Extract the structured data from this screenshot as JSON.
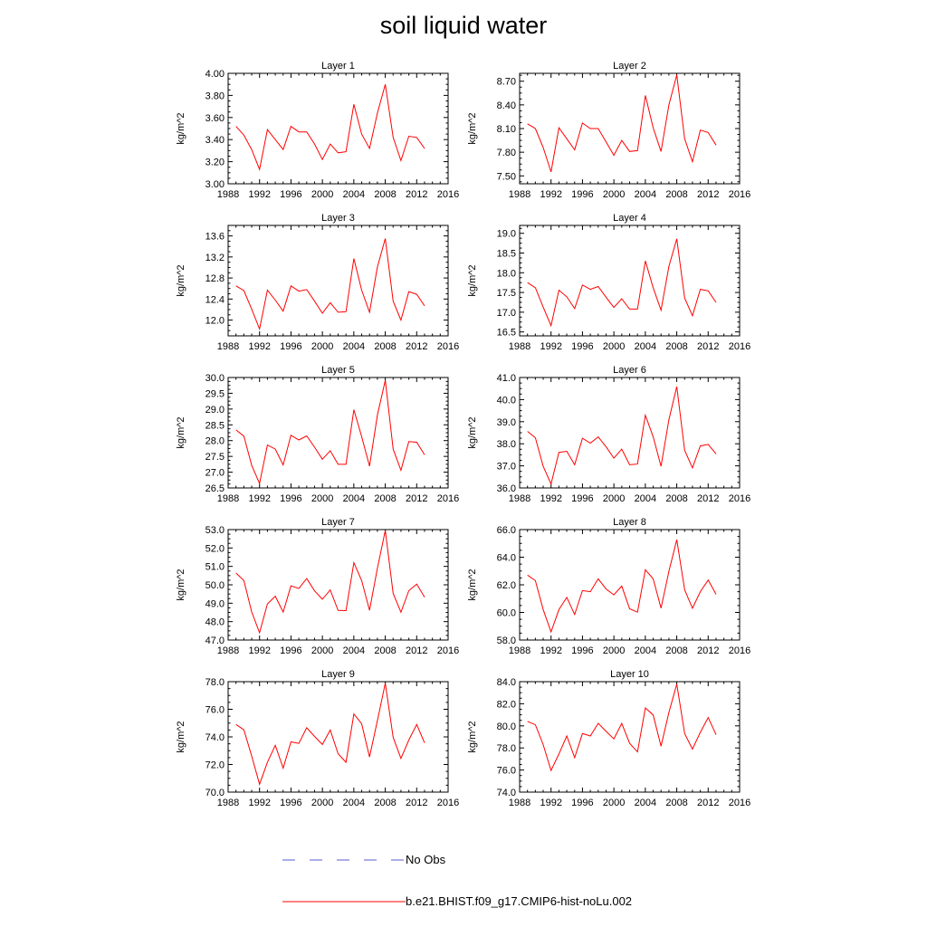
{
  "figure": {
    "title": "soil liquid water",
    "ylabel": "kg/m^2"
  },
  "legend": {
    "items": [
      {
        "label": "No Obs",
        "color": "#5b5bd6",
        "dash": true
      },
      {
        "label": "b.e21.BHIST.f09_g17.CMIP6-hist-noLu.002",
        "color": "#ff0000",
        "dash": false
      }
    ]
  },
  "chart_data": [
    {
      "type": "line",
      "title": "Layer 1",
      "ylabel": "kg/m^2",
      "xlim": [
        1988,
        2016
      ],
      "xticks": [
        "1988",
        "1992",
        "1996",
        "2000",
        "2004",
        "2008",
        "2012",
        "2016"
      ],
      "ylim": [
        3.0,
        4.0
      ],
      "yticks": [
        "3.00",
        "3.20",
        "3.40",
        "3.60",
        "3.80",
        "4.00"
      ],
      "x": [
        1989,
        1990,
        1991,
        1992,
        1993,
        1994,
        1995,
        1996,
        1997,
        1998,
        1999,
        2000,
        2001,
        2002,
        2003,
        2004,
        2005,
        2006,
        2007,
        2008,
        2009,
        2010,
        2011,
        2012,
        2013
      ],
      "series": [
        {
          "name": "b.e21.BHIST.f09_g17.CMIP6-hist-noLu.002",
          "values": [
            3.52,
            3.44,
            3.31,
            3.13,
            3.49,
            3.4,
            3.31,
            3.52,
            3.47,
            3.47,
            3.36,
            3.22,
            3.36,
            3.28,
            3.29,
            3.72,
            3.45,
            3.32,
            3.64,
            3.9,
            3.42,
            3.21,
            3.43,
            3.42,
            3.32
          ]
        }
      ]
    },
    {
      "type": "line",
      "title": "Layer 2",
      "ylabel": "kg/m^2",
      "xlim": [
        1988,
        2016
      ],
      "xticks": [
        "1988",
        "1992",
        "1996",
        "2000",
        "2004",
        "2008",
        "2012",
        "2016"
      ],
      "ylim": [
        7.4,
        8.8
      ],
      "yticks": [
        "7.50",
        "7.80",
        "8.10",
        "8.40",
        "8.70"
      ],
      "x": [
        1989,
        1990,
        1991,
        1992,
        1993,
        1994,
        1995,
        1996,
        1997,
        1998,
        1999,
        2000,
        2001,
        2002,
        2003,
        2004,
        2005,
        2006,
        2007,
        2008,
        2009,
        2010,
        2011,
        2012,
        2013
      ],
      "series": [
        {
          "name": "b.e21.BHIST.f09_g17.CMIP6-hist-noLu.002",
          "values": [
            8.16,
            8.1,
            7.86,
            7.55,
            8.11,
            7.97,
            7.83,
            8.17,
            8.1,
            8.1,
            7.93,
            7.76,
            7.95,
            7.81,
            7.82,
            8.52,
            8.11,
            7.81,
            8.4,
            8.78,
            7.97,
            7.68,
            8.08,
            8.05,
            7.89
          ]
        }
      ]
    },
    {
      "type": "line",
      "title": "Layer 3",
      "ylabel": "kg/m^2",
      "xlim": [
        1988,
        2016
      ],
      "xticks": [
        "1988",
        "1992",
        "1996",
        "2000",
        "2004",
        "2008",
        "2012",
        "2016"
      ],
      "ylim": [
        11.7,
        13.8
      ],
      "yticks": [
        "12.0",
        "12.4",
        "12.8",
        "13.2",
        "13.6"
      ],
      "x": [
        1989,
        1990,
        1991,
        1992,
        1993,
        1994,
        1995,
        1996,
        1997,
        1998,
        1999,
        2000,
        2001,
        2002,
        2003,
        2004,
        2005,
        2006,
        2007,
        2008,
        2009,
        2010,
        2011,
        2012,
        2013
      ],
      "series": [
        {
          "name": "b.e21.BHIST.f09_g17.CMIP6-hist-noLu.002",
          "values": [
            12.65,
            12.56,
            12.21,
            11.83,
            12.57,
            12.38,
            12.17,
            12.65,
            12.55,
            12.58,
            12.36,
            12.13,
            12.33,
            12.15,
            12.16,
            13.17,
            12.57,
            12.15,
            13.01,
            13.55,
            12.36,
            12.0,
            12.54,
            12.49,
            12.27
          ]
        }
      ]
    },
    {
      "type": "line",
      "title": "Layer 4",
      "ylabel": "kg/m^2",
      "xlim": [
        1988,
        2016
      ],
      "xticks": [
        "1988",
        "1992",
        "1996",
        "2000",
        "2004",
        "2008",
        "2012",
        "2016"
      ],
      "ylim": [
        16.4,
        19.2
      ],
      "yticks": [
        "16.5",
        "17.0",
        "17.5",
        "18.0",
        "18.5",
        "19.0"
      ],
      "x": [
        1989,
        1990,
        1991,
        1992,
        1993,
        1994,
        1995,
        1996,
        1997,
        1998,
        1999,
        2000,
        2001,
        2002,
        2003,
        2004,
        2005,
        2006,
        2007,
        2008,
        2009,
        2010,
        2011,
        2012,
        2013
      ],
      "series": [
        {
          "name": "b.e21.BHIST.f09_g17.CMIP6-hist-noLu.002",
          "values": [
            17.75,
            17.62,
            17.13,
            16.66,
            17.56,
            17.39,
            17.09,
            17.69,
            17.58,
            17.65,
            17.38,
            17.12,
            17.34,
            17.08,
            17.08,
            18.3,
            17.62,
            17.05,
            18.16,
            18.86,
            17.36,
            16.91,
            17.58,
            17.54,
            17.25
          ]
        }
      ]
    },
    {
      "type": "line",
      "title": "Layer 5",
      "ylabel": "kg/m^2",
      "xlim": [
        1988,
        2016
      ],
      "xticks": [
        "1988",
        "1992",
        "1996",
        "2000",
        "2004",
        "2008",
        "2012",
        "2016"
      ],
      "ylim": [
        26.5,
        30.0
      ],
      "yticks": [
        "26.5",
        "27.0",
        "27.5",
        "28.0",
        "28.5",
        "29.0",
        "29.5",
        "30.0"
      ],
      "x": [
        1989,
        1990,
        1991,
        1992,
        1993,
        1994,
        1995,
        1996,
        1997,
        1998,
        1999,
        2000,
        2001,
        2002,
        2003,
        2004,
        2005,
        2006,
        2007,
        2008,
        2009,
        2010,
        2011,
        2012,
        2013
      ],
      "series": [
        {
          "name": "b.e21.BHIST.f09_g17.CMIP6-hist-noLu.002",
          "values": [
            28.34,
            28.14,
            27.22,
            26.64,
            27.86,
            27.73,
            27.23,
            28.17,
            28.02,
            28.15,
            27.79,
            27.41,
            27.68,
            27.25,
            27.25,
            28.98,
            28.13,
            27.19,
            28.81,
            29.91,
            27.73,
            27.06,
            27.97,
            27.95,
            27.55
          ]
        }
      ]
    },
    {
      "type": "line",
      "title": "Layer 6",
      "ylabel": "kg/m^2",
      "xlim": [
        1988,
        2016
      ],
      "xticks": [
        "1988",
        "1992",
        "1996",
        "2000",
        "2004",
        "2008",
        "2012",
        "2016"
      ],
      "ylim": [
        36.0,
        41.0
      ],
      "yticks": [
        "36.0",
        "37.0",
        "38.0",
        "39.0",
        "40.0",
        "41.0"
      ],
      "x": [
        1989,
        1990,
        1991,
        1992,
        1993,
        1994,
        1995,
        1996,
        1997,
        1998,
        1999,
        2000,
        2001,
        2002,
        2003,
        2004,
        2005,
        2006,
        2007,
        2008,
        2009,
        2010,
        2011,
        2012,
        2013
      ],
      "series": [
        {
          "name": "b.e21.BHIST.f09_g17.CMIP6-hist-noLu.002",
          "values": [
            38.56,
            38.27,
            36.98,
            36.18,
            37.61,
            37.66,
            37.05,
            38.25,
            38.03,
            38.31,
            37.86,
            37.35,
            37.76,
            37.05,
            37.08,
            39.29,
            38.32,
            36.98,
            39.09,
            40.59,
            37.7,
            36.91,
            37.9,
            37.97,
            37.54
          ]
        }
      ]
    },
    {
      "type": "line",
      "title": "Layer 7",
      "ylabel": "kg/m^2",
      "xlim": [
        1988,
        2016
      ],
      "xticks": [
        "1988",
        "1992",
        "1996",
        "2000",
        "2004",
        "2008",
        "2012",
        "2016"
      ],
      "ylim": [
        47.0,
        53.0
      ],
      "yticks": [
        "47.0",
        "48.0",
        "49.0",
        "50.0",
        "51.0",
        "52.0",
        "53.0"
      ],
      "x": [
        1989,
        1990,
        1991,
        1992,
        1993,
        1994,
        1995,
        1996,
        1997,
        1998,
        1999,
        2000,
        2001,
        2002,
        2003,
        2004,
        2005,
        2006,
        2007,
        2008,
        2009,
        2010,
        2011,
        2012,
        2013
      ],
      "series": [
        {
          "name": "b.e21.BHIST.f09_g17.CMIP6-hist-noLu.002",
          "values": [
            50.64,
            50.23,
            48.53,
            47.4,
            48.96,
            49.38,
            48.52,
            49.94,
            49.8,
            50.34,
            49.67,
            49.22,
            49.72,
            48.61,
            48.6,
            51.2,
            50.23,
            48.62,
            50.9,
            52.95,
            49.53,
            48.51,
            49.68,
            50.04,
            49.33
          ]
        }
      ]
    },
    {
      "type": "line",
      "title": "Layer 8",
      "ylabel": "kg/m^2",
      "xlim": [
        1988,
        2016
      ],
      "xticks": [
        "1988",
        "1992",
        "1996",
        "2000",
        "2004",
        "2008",
        "2012",
        "2016"
      ],
      "ylim": [
        58.0,
        66.0
      ],
      "yticks": [
        "58.0",
        "60.0",
        "62.0",
        "64.0",
        "66.0"
      ],
      "x": [
        1989,
        1990,
        1991,
        1992,
        1993,
        1994,
        1995,
        1996,
        1997,
        1998,
        1999,
        2000,
        2001,
        2002,
        2003,
        2004,
        2005,
        2006,
        2007,
        2008,
        2009,
        2010,
        2011,
        2012,
        2013
      ],
      "series": [
        {
          "name": "b.e21.BHIST.f09_g17.CMIP6-hist-noLu.002",
          "values": [
            62.7,
            62.3,
            60.21,
            58.59,
            60.2,
            61.09,
            59.85,
            61.58,
            61.5,
            62.43,
            61.7,
            61.27,
            61.91,
            60.26,
            60.02,
            63.09,
            62.43,
            60.31,
            62.98,
            65.27,
            61.64,
            60.3,
            61.5,
            62.35,
            61.31
          ]
        }
      ]
    },
    {
      "type": "line",
      "title": "Layer 9",
      "ylabel": "kg/m^2",
      "xlim": [
        1988,
        2016
      ],
      "xticks": [
        "1988",
        "1992",
        "1996",
        "2000",
        "2004",
        "2008",
        "2012",
        "2016"
      ],
      "ylim": [
        70.0,
        78.0
      ],
      "yticks": [
        "70.0",
        "72.0",
        "74.0",
        "76.0",
        "78.0"
      ],
      "x": [
        1989,
        1990,
        1991,
        1992,
        1993,
        1994,
        1995,
        1996,
        1997,
        1998,
        1999,
        2000,
        2001,
        2002,
        2003,
        2004,
        2005,
        2006,
        2007,
        2008,
        2009,
        2010,
        2011,
        2012,
        2013
      ],
      "series": [
        {
          "name": "b.e21.BHIST.f09_g17.CMIP6-hist-noLu.002",
          "values": [
            74.9,
            74.51,
            72.62,
            70.57,
            72.16,
            73.39,
            71.74,
            73.64,
            73.53,
            74.66,
            74.03,
            73.45,
            74.5,
            72.78,
            72.16,
            75.66,
            74.95,
            72.55,
            75.18,
            77.89,
            73.96,
            72.44,
            73.77,
            74.9,
            73.57
          ]
        }
      ]
    },
    {
      "type": "line",
      "title": "Layer 10",
      "ylabel": "kg/m^2",
      "xlim": [
        1988,
        2016
      ],
      "xticks": [
        "1988",
        "1992",
        "1996",
        "2000",
        "2004",
        "2008",
        "2012",
        "2016"
      ],
      "ylim": [
        74.0,
        84.0
      ],
      "yticks": [
        "74.0",
        "76.0",
        "78.0",
        "80.0",
        "82.0",
        "84.0"
      ],
      "x": [
        1989,
        1990,
        1991,
        1992,
        1993,
        1994,
        1995,
        1996,
        1997,
        1998,
        1999,
        2000,
        2001,
        2002,
        2003,
        2004,
        2005,
        2006,
        2007,
        2008,
        2009,
        2010,
        2011,
        2012,
        2013
      ],
      "series": [
        {
          "name": "b.e21.BHIST.f09_g17.CMIP6-hist-noLu.002",
          "values": [
            80.4,
            80.1,
            78.3,
            75.96,
            77.45,
            79.08,
            77.12,
            79.3,
            79.08,
            80.23,
            79.5,
            78.82,
            80.22,
            78.42,
            77.64,
            81.62,
            80.99,
            78.16,
            81.21,
            83.79,
            79.3,
            77.89,
            79.41,
            80.75,
            79.2
          ]
        }
      ]
    }
  ]
}
